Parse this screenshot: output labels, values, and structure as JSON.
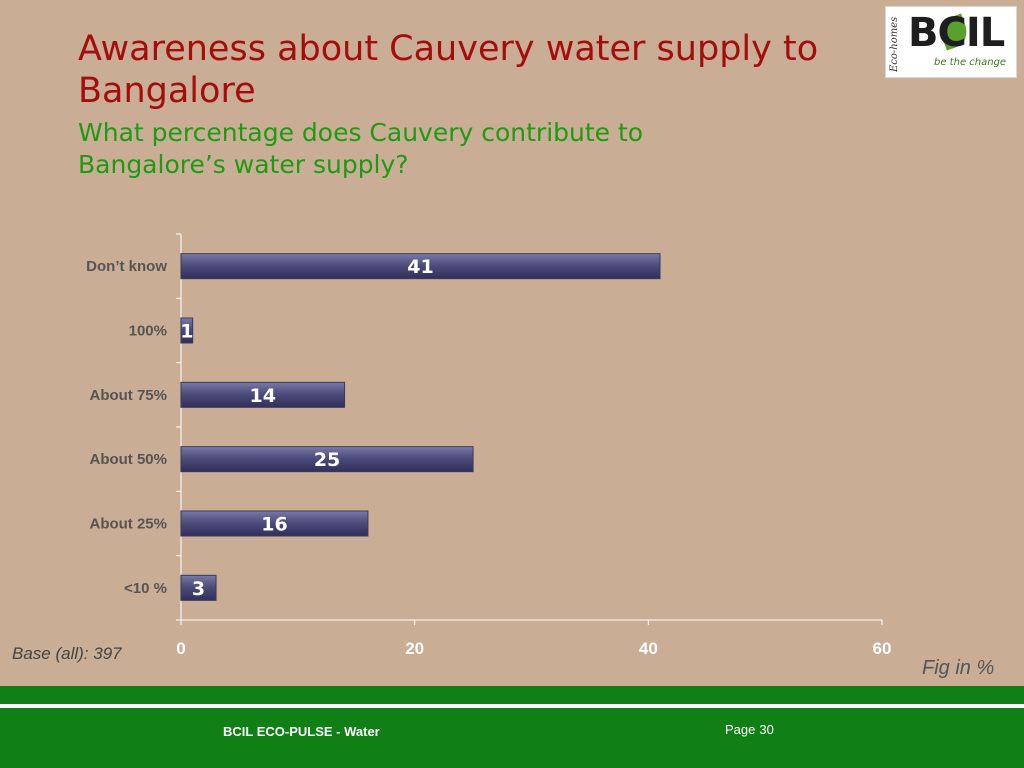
{
  "slide": {
    "title": "Awareness about Cauvery water supply to Bangalore",
    "subtitle": "What percentage does Cauvery contribute to Bangalore’s water supply?",
    "base_note": "Base (all): 397",
    "fig_note": "Fig in %",
    "footer_text": "BCIL ECO-PULSE - Water",
    "page_label": "Page",
    "page_number": "30"
  },
  "logo": {
    "brand": "BCIL",
    "tagline": "be the change",
    "script_text": "Eco-homes"
  },
  "colors": {
    "background": "#c9ad94",
    "title": "#a50d0d",
    "subtitle": "#1f9a12",
    "bar": "#4d4d7e",
    "footer": "#0f7f16"
  },
  "chart_data": {
    "type": "bar",
    "orientation": "horizontal",
    "categories": [
      "Don’t know",
      "100%",
      "About 75%",
      "About 50%",
      "About 25%",
      "<10 %"
    ],
    "values": [
      41,
      1,
      14,
      25,
      16,
      3
    ],
    "data_labels": [
      "41",
      "1",
      "14",
      "25",
      "16",
      "3"
    ],
    "xlim": [
      0,
      60
    ],
    "xticks": [
      0,
      20,
      40,
      60
    ],
    "grid": false,
    "legend": "none"
  }
}
